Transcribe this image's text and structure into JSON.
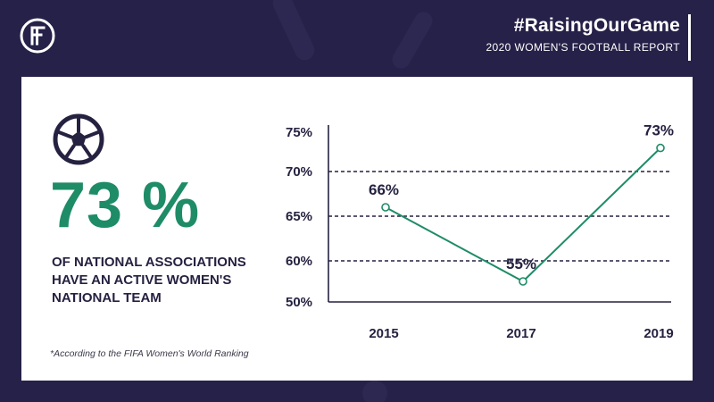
{
  "header": {
    "hashtag": "#RaisingOurGame",
    "report": "2020 WOMEN'S FOOTBALL REPORT"
  },
  "stat": {
    "value": "73 %",
    "description": "OF NATIONAL ASSOCIATIONS HAVE AN ACTIVE WOMEN'S NATIONAL TEAM"
  },
  "footnote": "*According to the FIFA Women's World Ranking",
  "colors": {
    "background": "#262148",
    "accent": "#1e8c66",
    "text_dark": "#252140"
  },
  "icons": [
    "fifa-logo-icon",
    "football-icon"
  ],
  "chart_data": {
    "type": "line",
    "categories": [
      "2015",
      "2017",
      "2019"
    ],
    "series": [
      {
        "values": [
          66,
          55,
          73
        ],
        "labels": [
          "66%",
          "55%",
          "73%"
        ]
      }
    ],
    "y_ticks": [
      "75%",
      "70%",
      "65%",
      "60%",
      "50%"
    ],
    "grid": "dashed horizontal",
    "color": "#1e8c66"
  }
}
